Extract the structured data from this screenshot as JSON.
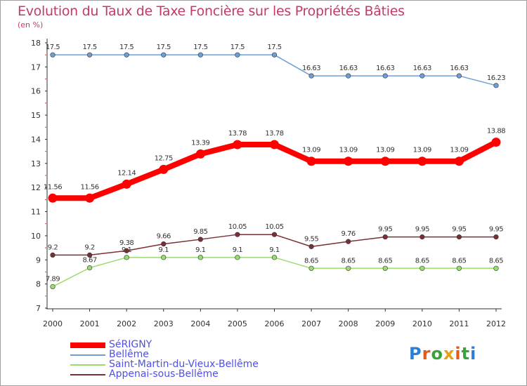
{
  "chart_data": {
    "type": "line",
    "title": "Evolution du Taux de Taxe Foncière sur les Propriétés Bâties",
    "unit_label": "(en %)",
    "x": [
      "2000",
      "2001",
      "2002",
      "2003",
      "2004",
      "2005",
      "2006",
      "2007",
      "2008",
      "2009",
      "2010",
      "2011",
      "2012"
    ],
    "ylim": [
      7,
      18
    ],
    "yticks": [
      7,
      8,
      9,
      10,
      11,
      12,
      13,
      14,
      15,
      16,
      17,
      18
    ],
    "grid": false,
    "legend_position": "bottom-left",
    "series": [
      {
        "name": "SéRIGNY",
        "color": "#ff0000",
        "emphasis": true,
        "values": [
          11.56,
          11.56,
          12.14,
          12.75,
          13.39,
          13.78,
          13.78,
          13.09,
          13.09,
          13.09,
          13.09,
          13.09,
          13.88
        ],
        "labels": [
          "11.56",
          "11.56",
          "12.14",
          "12.75",
          "13.39",
          "13.78",
          "13.78",
          "13.09",
          "13.09",
          "13.09",
          "13.09",
          "13.09",
          "13.88"
        ]
      },
      {
        "name": "Bellême",
        "color": "#6f9ed5",
        "emphasis": false,
        "values": [
          17.5,
          17.5,
          17.5,
          17.5,
          17.5,
          17.5,
          17.5,
          16.63,
          16.63,
          16.63,
          16.63,
          16.63,
          16.23
        ],
        "labels": [
          "17.5",
          "17.5",
          "17.5",
          "17.5",
          "17.5",
          "17.5",
          "17.5",
          "16.63",
          "16.63",
          "16.63",
          "16.63",
          "16.63",
          "16.23"
        ]
      },
      {
        "name": "Saint-Martin-du-Vieux-Bellême",
        "color": "#9bdc6e",
        "emphasis": false,
        "values": [
          7.89,
          8.67,
          9.1,
          9.1,
          9.1,
          9.1,
          9.1,
          8.65,
          8.65,
          8.65,
          8.65,
          8.65,
          8.65
        ],
        "labels": [
          "7.89",
          "8.67",
          "9.1",
          "9.1",
          "9.1",
          "9.1",
          "9.1",
          "8.65",
          "8.65",
          "8.65",
          "8.65",
          "8.65",
          "8.65"
        ]
      },
      {
        "name": "Appenai-sous-Bellême",
        "color": "#7a2f35",
        "emphasis": false,
        "values": [
          9.2,
          9.2,
          9.38,
          9.66,
          9.85,
          10.05,
          10.05,
          9.55,
          9.76,
          9.95,
          9.95,
          9.95,
          9.95
        ],
        "labels": [
          "9.2",
          "9.2",
          "9.38",
          "9.66",
          "9.85",
          "10.05",
          "10.05",
          "9.55",
          "9.76",
          "9.95",
          "9.95",
          "9.95",
          "9.95"
        ]
      }
    ]
  },
  "logo": {
    "text": "Proxiti"
  }
}
